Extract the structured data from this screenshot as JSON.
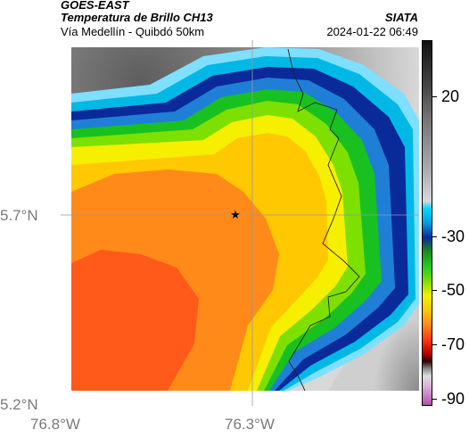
{
  "header": {
    "satellite": "GOES-EAST",
    "product": "Temperatura de Brillo CH13",
    "area": "Vía Medellín - Quibdó 50km",
    "organization": "SIATA",
    "timestamp": "2024-01-22 06:49"
  },
  "map": {
    "lat_labels": [
      "5.7°N",
      "5.2°N"
    ],
    "lon_labels": [
      "76.8°W",
      "76.3°W"
    ],
    "marker_icon": "star-icon"
  },
  "colorbar": {
    "ticks": [
      "20",
      "-30",
      "-50",
      "-70",
      "-90"
    ]
  },
  "colors": {
    "warm_gray": "#6b6b6b",
    "cyan": "#00c8e8",
    "blue": "#0a2a9a",
    "green": "#22cc22",
    "yellow": "#f6ef00",
    "orange": "#ff8a1a",
    "red_orange": "#ff5a1a"
  }
}
